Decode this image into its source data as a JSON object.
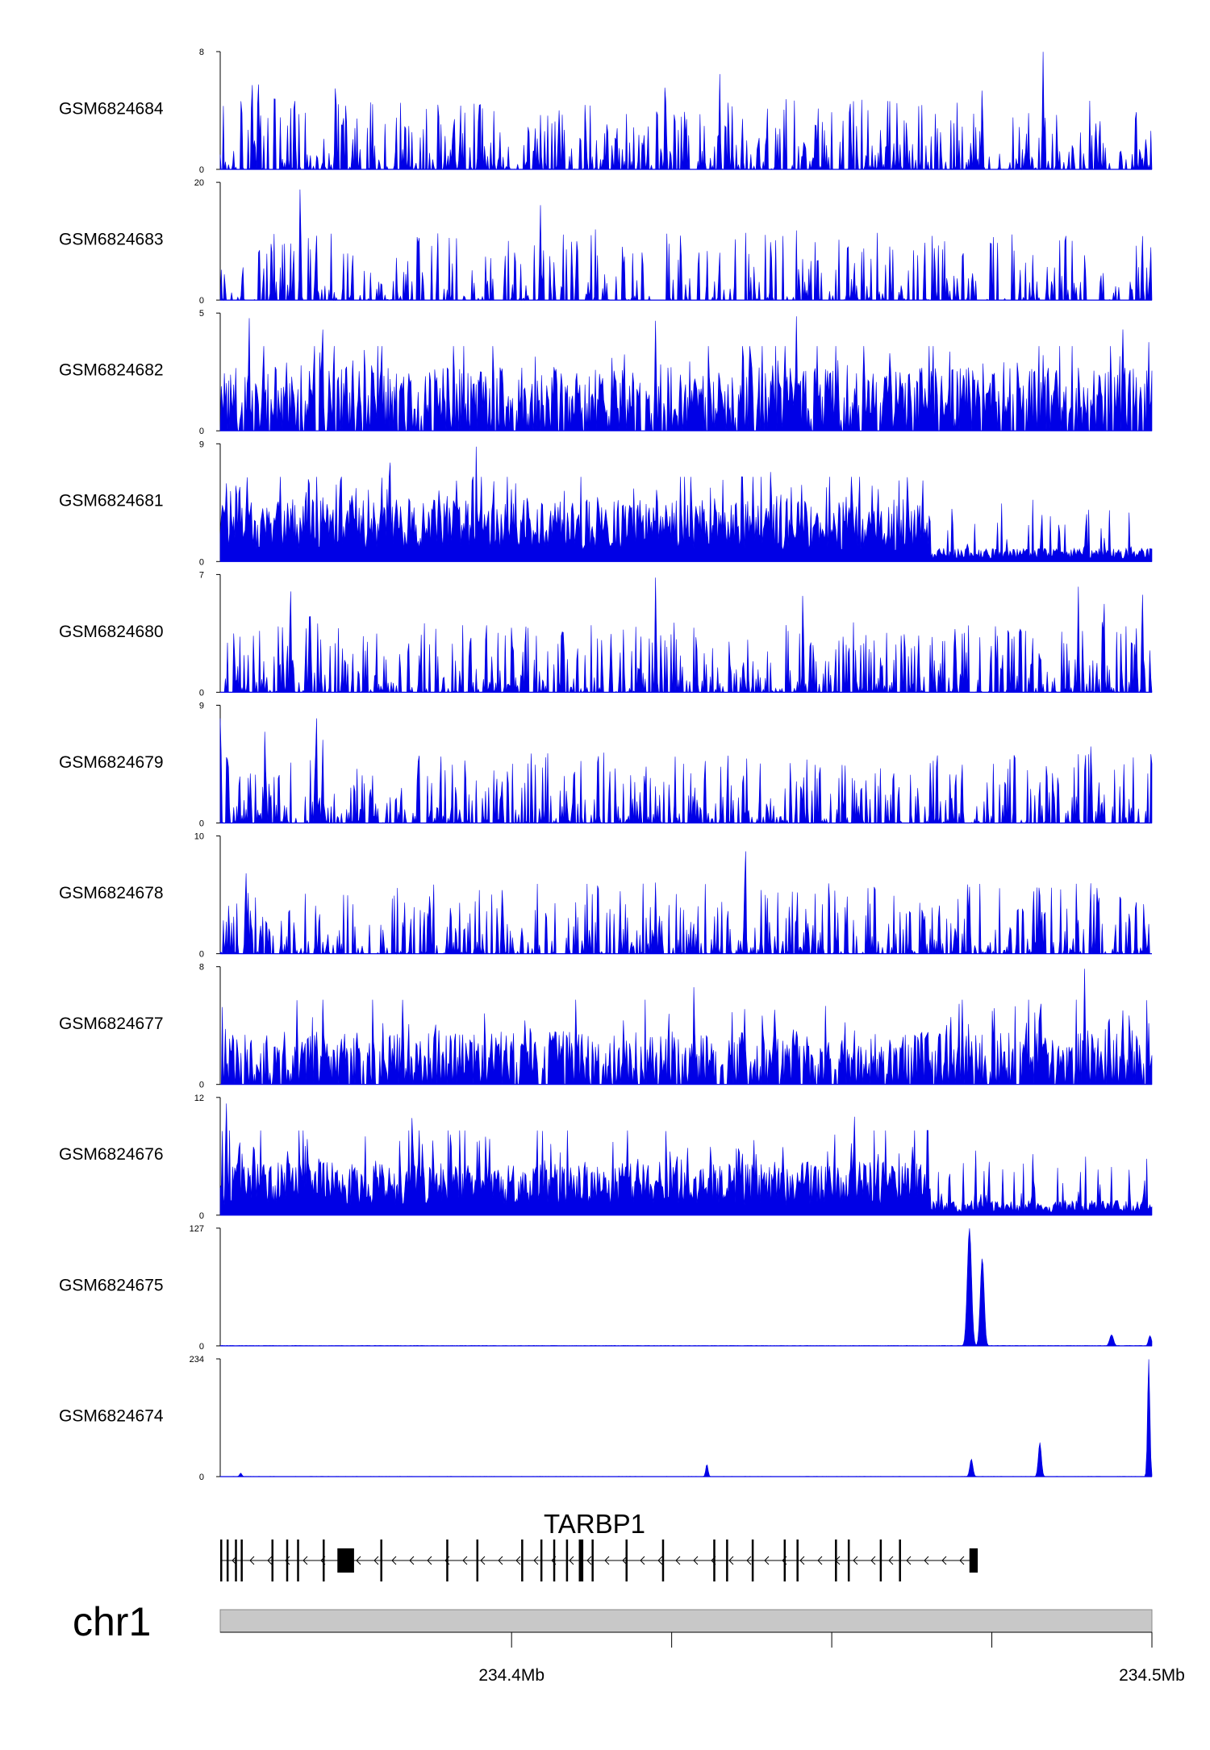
{
  "chart_data": {
    "type": "area",
    "title": "",
    "chromosome": "chr1",
    "x_range_mb": [
      234.3545,
      234.5
    ],
    "x_ticks_mb": [
      234.4,
      234.425,
      234.45,
      234.475,
      234.5
    ],
    "x_tick_labels": [
      {
        "value": 234.4,
        "label": "234.4Mb"
      },
      {
        "value": 234.5,
        "label": "234.5Mb"
      }
    ],
    "series_color": "#0000e6",
    "tracks": [
      {
        "name": "GSM6824684",
        "ymax": 8,
        "ymax_label": "8",
        "ymin_label": "0",
        "profile": "peaky",
        "mean": 1.6,
        "peaks": [
          {
            "x": 234.3595,
            "y": 5.8
          },
          {
            "x": 234.3605,
            "y": 5.8
          },
          {
            "x": 234.3725,
            "y": 5.8
          },
          {
            "x": 234.424,
            "y": 6.8
          },
          {
            "x": 234.4325,
            "y": 6.5
          },
          {
            "x": 234.4735,
            "y": 5.8
          },
          {
            "x": 234.483,
            "y": 8.0
          },
          {
            "x": 234.4975,
            "y": 4.9
          }
        ]
      },
      {
        "name": "GSM6824683",
        "ymax": 20,
        "ymax_label": "20",
        "ymin_label": "0",
        "profile": "sparse",
        "mean": 2.0,
        "peaks": [
          {
            "x": 234.367,
            "y": 20.0
          },
          {
            "x": 234.3695,
            "y": 12.3
          },
          {
            "x": 234.3625,
            "y": 11.8
          },
          {
            "x": 234.4045,
            "y": 16.2
          },
          {
            "x": 234.4405,
            "y": 11.5
          },
          {
            "x": 234.4525,
            "y": 11.9
          },
          {
            "x": 234.4985,
            "y": 11.8
          }
        ]
      },
      {
        "name": "GSM6824682",
        "ymax": 5,
        "ymax_label": "5",
        "ymin_label": "0",
        "profile": "dense",
        "mean": 1.5,
        "peaks": [
          {
            "x": 234.359,
            "y": 5.0
          },
          {
            "x": 234.3705,
            "y": 4.4
          },
          {
            "x": 234.4225,
            "y": 4.8
          },
          {
            "x": 234.4445,
            "y": 4.9
          },
          {
            "x": 234.4955,
            "y": 4.5
          },
          {
            "x": 234.4995,
            "y": 3.8
          }
        ]
      },
      {
        "name": "GSM6824681",
        "ymax": 9,
        "ymax_label": "9",
        "ymin_label": "0",
        "profile": "broad",
        "mean": 2.8,
        "dropAt": 234.4655,
        "dropMean": 0.6,
        "peaks": [
          {
            "x": 234.3555,
            "y": 6.2
          },
          {
            "x": 234.357,
            "y": 7.3
          },
          {
            "x": 234.3575,
            "y": 7.3
          },
          {
            "x": 234.3945,
            "y": 9.0
          },
          {
            "x": 234.381,
            "y": 8.2
          },
          {
            "x": 234.4405,
            "y": 8.0
          },
          {
            "x": 234.4855,
            "y": 3.4
          }
        ]
      },
      {
        "name": "GSM6824680",
        "ymax": 7,
        "ymax_label": "7",
        "ymin_label": "0",
        "profile": "peaky",
        "mean": 1.3,
        "peaks": [
          {
            "x": 234.3655,
            "y": 6.0
          },
          {
            "x": 234.3685,
            "y": 6.0
          },
          {
            "x": 234.4225,
            "y": 7.0
          },
          {
            "x": 234.4455,
            "y": 6.2
          },
          {
            "x": 234.4885,
            "y": 6.3
          },
          {
            "x": 234.4985,
            "y": 6.3
          },
          {
            "x": 234.4925,
            "y": 6.0
          }
        ]
      },
      {
        "name": "GSM6824679",
        "ymax": 9,
        "ymax_label": "9",
        "ymin_label": "0",
        "profile": "peaky",
        "mean": 1.5,
        "peaks": [
          {
            "x": 234.3545,
            "y": 8.0
          },
          {
            "x": 234.3695,
            "y": 9.0
          },
          {
            "x": 234.3705,
            "y": 6.5
          },
          {
            "x": 234.3615,
            "y": 7.5
          },
          {
            "x": 234.4135,
            "y": 6.5
          },
          {
            "x": 234.4905,
            "y": 6.5
          }
        ]
      },
      {
        "name": "GSM6824678",
        "ymax": 10,
        "ymax_label": "10",
        "ymin_label": "0",
        "profile": "peaky",
        "mean": 1.4,
        "peaks": [
          {
            "x": 234.3585,
            "y": 7.5
          },
          {
            "x": 234.4365,
            "y": 10.0
          },
          {
            "x": 234.4225,
            "y": 6.2
          },
          {
            "x": 234.4815,
            "y": 5.9
          },
          {
            "x": 234.4975,
            "y": 5.5
          }
        ]
      },
      {
        "name": "GSM6824677",
        "ymax": 8,
        "ymax_label": "8",
        "ymin_label": "0",
        "profile": "dense",
        "mean": 2.0,
        "peaks": [
          {
            "x": 234.4285,
            "y": 7.0
          },
          {
            "x": 234.4175,
            "y": 4.7
          },
          {
            "x": 234.4895,
            "y": 8.0
          },
          {
            "x": 234.4965,
            "y": 5.5
          },
          {
            "x": 234.4995,
            "y": 4.2
          }
        ]
      },
      {
        "name": "GSM6824676",
        "ymax": 12,
        "ymax_label": "12",
        "ymin_label": "0",
        "profile": "broad",
        "mean": 3.2,
        "dropAt": 234.4655,
        "dropMean": 0.9,
        "peaks": [
          {
            "x": 234.3555,
            "y": 11.8
          },
          {
            "x": 234.3575,
            "y": 9.5
          },
          {
            "x": 234.3845,
            "y": 11.5
          },
          {
            "x": 234.3905,
            "y": 10.2
          },
          {
            "x": 234.4355,
            "y": 8.8
          },
          {
            "x": 234.4535,
            "y": 11.2
          },
          {
            "x": 234.4885,
            "y": 2.4
          }
        ]
      },
      {
        "name": "GSM6824675",
        "ymax": 127,
        "ymax_label": "127",
        "ymin_label": "0",
        "profile": "flat",
        "mean": 1.0,
        "peaks": [
          {
            "x": 234.4715,
            "y": 127.0,
            "w": 0.00055
          },
          {
            "x": 234.4735,
            "y": 95.0,
            "w": 0.0005
          },
          {
            "x": 234.4937,
            "y": 12.0,
            "w": 0.0005
          },
          {
            "x": 234.4997,
            "y": 11.0,
            "w": 0.0004
          }
        ]
      },
      {
        "name": "GSM6824674",
        "ymax": 234,
        "ymax_label": "234",
        "ymin_label": "0",
        "profile": "flat",
        "mean": 1.0,
        "peaks": [
          {
            "x": 234.4995,
            "y": 234.0,
            "w": 0.0003
          },
          {
            "x": 234.4825,
            "y": 68.0,
            "w": 0.0004
          },
          {
            "x": 234.4718,
            "y": 35.0,
            "w": 0.0004
          },
          {
            "x": 234.4305,
            "y": 25.0,
            "w": 0.0003
          },
          {
            "x": 234.3577,
            "y": 7.0,
            "w": 0.0003
          }
        ]
      }
    ],
    "gene": {
      "name": "TARBP1",
      "strand": "-",
      "start_mb": 234.3545,
      "end_mb": 234.4725,
      "exons": [
        {
          "start": 234.3545,
          "end": 234.3548,
          "thick": false
        },
        {
          "start": 234.3555,
          "end": 234.3558,
          "thick": false
        },
        {
          "start": 234.3568,
          "end": 234.357,
          "thick": false
        },
        {
          "start": 234.3577,
          "end": 234.358,
          "thick": false
        },
        {
          "start": 234.3625,
          "end": 234.3627,
          "thick": false
        },
        {
          "start": 234.3648,
          "end": 234.365,
          "thick": false
        },
        {
          "start": 234.3665,
          "end": 234.3668,
          "thick": false
        },
        {
          "start": 234.3705,
          "end": 234.3708,
          "thick": false
        },
        {
          "start": 234.3728,
          "end": 234.3754,
          "thick": true
        },
        {
          "start": 234.3795,
          "end": 234.3797,
          "thick": false
        },
        {
          "start": 234.3898,
          "end": 234.39,
          "thick": false
        },
        {
          "start": 234.3945,
          "end": 234.3947,
          "thick": false
        },
        {
          "start": 234.4015,
          "end": 234.4017,
          "thick": false
        },
        {
          "start": 234.4045,
          "end": 234.4047,
          "thick": false
        },
        {
          "start": 234.4065,
          "end": 234.4067,
          "thick": false
        },
        {
          "start": 234.4085,
          "end": 234.4087,
          "thick": false
        },
        {
          "start": 234.4105,
          "end": 234.4112,
          "thick": false
        },
        {
          "start": 234.4125,
          "end": 234.4127,
          "thick": false
        },
        {
          "start": 234.4178,
          "end": 234.418,
          "thick": false
        },
        {
          "start": 234.4235,
          "end": 234.4237,
          "thick": false
        },
        {
          "start": 234.4315,
          "end": 234.4317,
          "thick": false
        },
        {
          "start": 234.4335,
          "end": 234.4337,
          "thick": false
        },
        {
          "start": 234.4375,
          "end": 234.4377,
          "thick": false
        },
        {
          "start": 234.4425,
          "end": 234.4427,
          "thick": false
        },
        {
          "start": 234.4445,
          "end": 234.4447,
          "thick": false
        },
        {
          "start": 234.4505,
          "end": 234.4507,
          "thick": false
        },
        {
          "start": 234.4525,
          "end": 234.4527,
          "thick": false
        },
        {
          "start": 234.4575,
          "end": 234.4577,
          "thick": false
        },
        {
          "start": 234.4605,
          "end": 234.4607,
          "thick": false
        },
        {
          "start": 234.4715,
          "end": 234.4728,
          "thick": true
        }
      ]
    }
  }
}
